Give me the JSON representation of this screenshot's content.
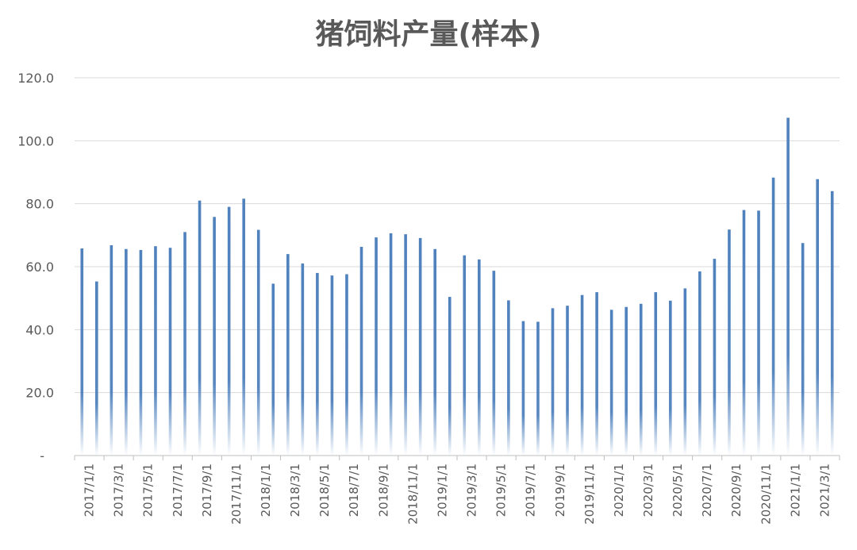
{
  "chart_data": {
    "type": "bar",
    "title": "猪饲料产量(样本)",
    "xlabel": "",
    "ylabel": "",
    "ylim": [
      0,
      120
    ],
    "y_ticks": [
      0,
      20,
      40,
      60,
      80,
      100,
      120
    ],
    "y_tick_labels": [
      "-",
      "20.0",
      "40.0",
      "60.0",
      "80.0",
      "100.0",
      "120.0"
    ],
    "grid": true,
    "bar_color": "#4f81bd",
    "categories": [
      "2017/1/1",
      "2017/2/1",
      "2017/3/1",
      "2017/4/1",
      "2017/5/1",
      "2017/6/1",
      "2017/7/1",
      "2017/8/1",
      "2017/9/1",
      "2017/10/1",
      "2017/11/1",
      "2017/12/1",
      "2018/1/1",
      "2018/2/1",
      "2018/3/1",
      "2018/4/1",
      "2018/5/1",
      "2018/6/1",
      "2018/7/1",
      "2018/8/1",
      "2018/9/1",
      "2018/10/1",
      "2018/11/1",
      "2018/12/1",
      "2019/1/1",
      "2019/2/1",
      "2019/3/1",
      "2019/4/1",
      "2019/5/1",
      "2019/6/1",
      "2019/7/1",
      "2019/8/1",
      "2019/9/1",
      "2019/10/1",
      "2019/11/1",
      "2019/12/1",
      "2020/1/1",
      "2020/2/1",
      "2020/3/1",
      "2020/4/1",
      "2020/5/1",
      "2020/6/1",
      "2020/7/1",
      "2020/8/1",
      "2020/9/1",
      "2020/10/1",
      "2020/11/1",
      "2020/12/1",
      "2021/1/1",
      "2021/2/1",
      "2021/3/1",
      "2021/4/1"
    ],
    "x_tick_labels": [
      "2017/1/1",
      "2017/3/1",
      "2017/5/1",
      "2017/7/1",
      "2017/9/1",
      "2017/11/1",
      "2018/1/1",
      "2018/3/1",
      "2018/5/1",
      "2018/7/1",
      "2018/9/1",
      "2018/11/1",
      "2019/1/1",
      "2019/3/1",
      "2019/5/1",
      "2019/7/1",
      "2019/9/1",
      "2019/11/1",
      "2020/1/1",
      "2020/3/1",
      "2020/5/1",
      "2020/7/1",
      "2020/9/1",
      "2020/11/1",
      "2021/1/1",
      "2021/3/1"
    ],
    "values": [
      65.8,
      55.3,
      66.8,
      65.6,
      65.3,
      66.5,
      66.0,
      71.0,
      81.0,
      75.8,
      79.0,
      81.6,
      71.7,
      54.6,
      64.0,
      61.0,
      58.0,
      57.2,
      57.6,
      66.3,
      69.3,
      70.6,
      70.3,
      69.1,
      65.6,
      50.4,
      63.6,
      62.3,
      58.7,
      49.3,
      42.7,
      42.5,
      46.8,
      47.6,
      51.0,
      51.9,
      46.3,
      47.2,
      48.2,
      51.9,
      49.2,
      53.1,
      58.5,
      62.5,
      71.8,
      78.0,
      77.8,
      88.3,
      107.3,
      67.5,
      87.8,
      84.0
    ]
  }
}
